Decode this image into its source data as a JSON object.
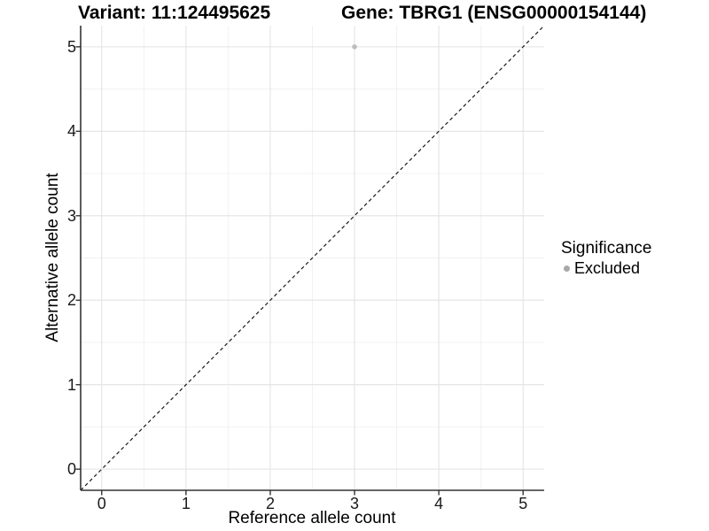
{
  "chart_data": {
    "type": "scatter",
    "title_left": "Variant: 11:124495625",
    "title_right": "Gene: TBRG1 (ENSG00000154144)",
    "xlabel": "Reference allele count",
    "ylabel": "Alternative allele count",
    "xlim": [
      -0.25,
      5.25
    ],
    "ylim": [
      -0.25,
      5.25
    ],
    "xticks": [
      0,
      1,
      2,
      3,
      4,
      5
    ],
    "yticks": [
      0,
      1,
      2,
      3,
      4,
      5
    ],
    "minor_gridlines_x": [
      0.5,
      1.5,
      2.5,
      3.5,
      4.5
    ],
    "minor_gridlines_y": [
      0.5,
      1.5,
      2.5,
      3.5,
      4.5
    ],
    "grid": "major+minor",
    "series": [
      {
        "name": "Excluded",
        "color": "#bdbdbd",
        "marker": "circle",
        "points": [
          {
            "x": 3,
            "y": 5
          }
        ]
      }
    ],
    "reference_line": {
      "type": "identity",
      "style": "dashed",
      "color": "#1a1a1a",
      "from": [
        -0.25,
        -0.25
      ],
      "to": [
        5.25,
        5.25
      ]
    },
    "legend": {
      "title": "Significance",
      "position": "right",
      "items": [
        {
          "label": "Excluded",
          "marker": "circle",
          "marker_color": "#a8a8a8"
        }
      ]
    },
    "colors": {
      "background": "#ffffff",
      "grid_major": "#e3e3e3",
      "grid_minor": "#f0f0f0",
      "axis_line": "#333333",
      "tick_mark": "#333333",
      "text": "#000000"
    }
  }
}
